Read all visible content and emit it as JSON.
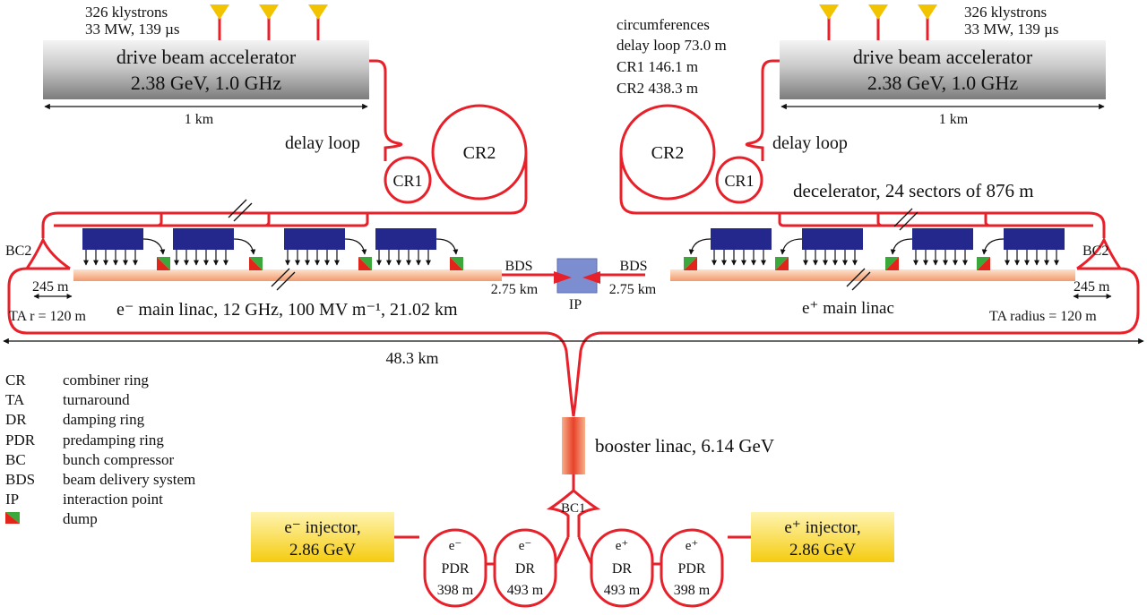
{
  "colors": {
    "beamline": "#e8202a",
    "module": "#24288c",
    "accelerator_grey": "#a9a9a9",
    "injector_yellow": "#f6d21a",
    "linac_pink": "#f7b48c",
    "ip_blue": "#7c8ed0",
    "dump_red": "#e3241b",
    "dump_green": "#3aa83a",
    "klystron_yellow": "#f2c400"
  },
  "left_top": {
    "klystrons_line1": "326 klystrons",
    "klystrons_line2": "33 MW, 139 µs",
    "accel_line1": "drive beam accelerator",
    "accel_line2": "2.38 GeV, 1.0 GHz",
    "length": "1 km",
    "delay_loop": "delay loop",
    "cr2": "CR2",
    "cr1": "CR1"
  },
  "right_top": {
    "circ_title": "circumferences",
    "circ_delay": "delay loop 73.0 m",
    "circ_cr1": "CR1 146.1 m",
    "circ_cr2": "CR2 438.3 m",
    "klystrons_line1": "326 klystrons",
    "klystrons_line2": "33 MW, 139 µs",
    "accel_line1": "drive beam accelerator",
    "accel_line2": "2.38 GeV, 1.0 GHz",
    "length": "1 km",
    "delay_loop": "delay loop",
    "cr2": "CR2",
    "cr1": "CR1",
    "decelerator": "decelerator, 24 sectors of 876 m"
  },
  "main": {
    "bc2_left": "BC2",
    "bc2_right": "BC2",
    "len_245_left": "245 m",
    "len_245_right": "245 m",
    "ta_left": "TA r = 120 m",
    "ta_right": "TA radius = 120 m",
    "e_minus_linac": "e⁻ main linac, 12 GHz, 100 MV m⁻¹, 21.02 km",
    "e_plus_linac": "e⁺ main linac",
    "bds_left": "BDS",
    "bds_left_len": "2.75 km",
    "bds_right": "BDS",
    "bds_right_len": "2.75 km",
    "ip": "IP",
    "total_length": "48.3 km"
  },
  "legend": [
    {
      "abbr": "CR",
      "desc": "combiner ring"
    },
    {
      "abbr": "TA",
      "desc": "turnaround"
    },
    {
      "abbr": "DR",
      "desc": "damping ring"
    },
    {
      "abbr": "PDR",
      "desc": "predamping ring"
    },
    {
      "abbr": "BC",
      "desc": "bunch compressor"
    },
    {
      "abbr": "BDS",
      "desc": "beam delivery system"
    },
    {
      "abbr": "IP",
      "desc": "interaction point"
    },
    {
      "abbr": "",
      "desc": "dump"
    }
  ],
  "injector": {
    "booster": "booster linac, 6.14 GeV",
    "bc1": "BC1",
    "e_minus_inj_line1": "e⁻ injector,",
    "e_minus_inj_line2": "2.86 GeV",
    "e_plus_inj_line1": "e⁺ injector,",
    "e_plus_inj_line2": "2.86 GeV",
    "em_pdr": [
      "e⁻",
      "PDR",
      "398 m"
    ],
    "em_dr": [
      "e⁻",
      "DR",
      "493 m"
    ],
    "ep_dr": [
      "e⁺",
      "DR",
      "493 m"
    ],
    "ep_pdr": [
      "e⁺",
      "PDR",
      "398 m"
    ]
  }
}
